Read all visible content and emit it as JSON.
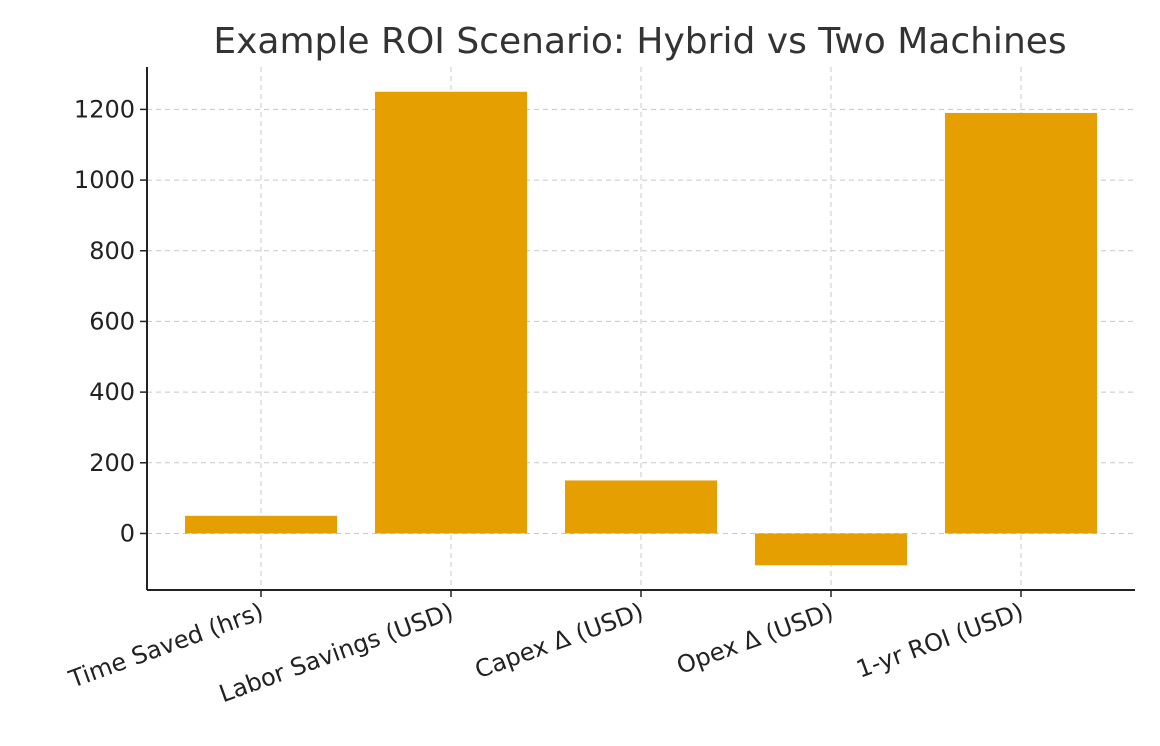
{
  "chart_data": {
    "type": "bar",
    "title": "Example ROI Scenario: Hybrid vs Two Machines",
    "xlabel": "",
    "ylabel": "",
    "categories": [
      "Time Saved (hrs)",
      "Labor Savings (USD)",
      "Capex Δ (USD)",
      "Opex Δ (USD)",
      "1-yr ROI (USD)"
    ],
    "values": [
      50,
      1250,
      150,
      -90,
      1190
    ],
    "ylim": [
      -160,
      1320
    ],
    "yticks": [
      0,
      200,
      400,
      600,
      800,
      1000,
      1200
    ],
    "grid": true,
    "bar_color": "#E69F00",
    "legend": "none"
  }
}
